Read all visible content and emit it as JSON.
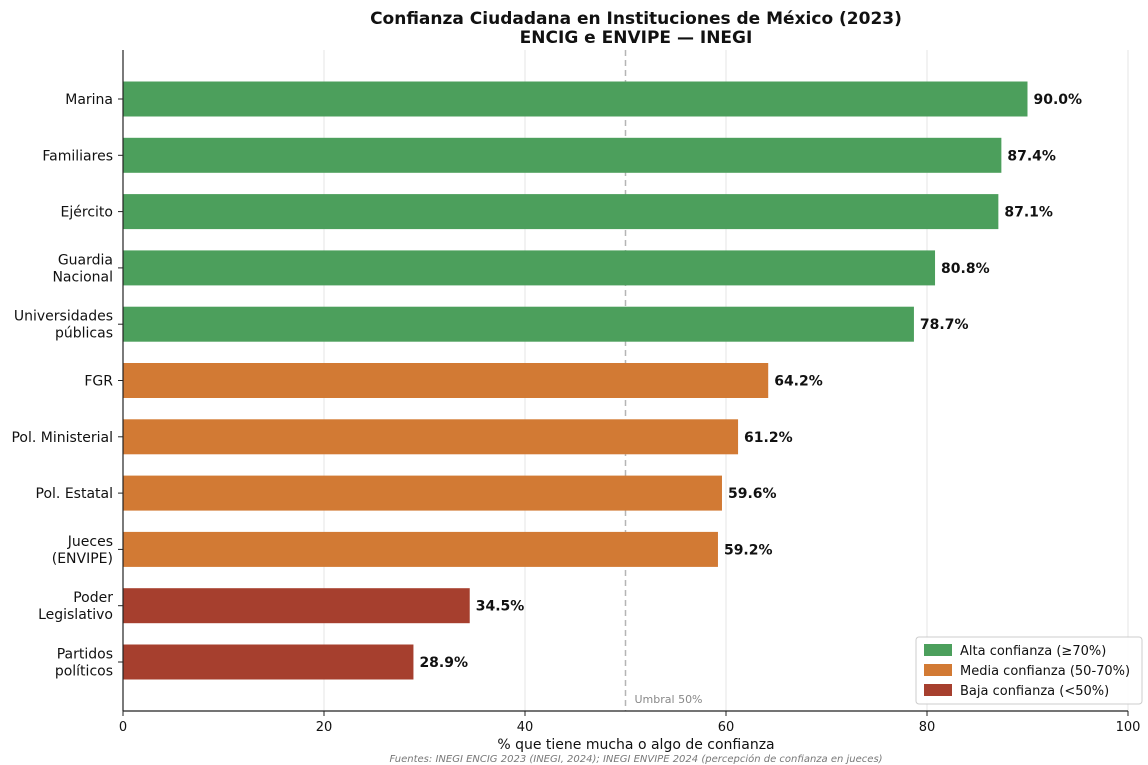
{
  "chart_data": {
    "type": "bar",
    "orientation": "horizontal",
    "title": "Confianza Ciudadana en Instituciones de México (2023)",
    "subtitle": "ENCIG e ENVIPE — INEGI",
    "xlabel": "% que tiene mucha o algo de confianza",
    "ylabel": "",
    "xlim": [
      0,
      100
    ],
    "xticks": [
      0,
      20,
      40,
      60,
      80,
      100
    ],
    "grid": "vertical",
    "categories": [
      [
        "Marina"
      ],
      [
        "Familiares"
      ],
      [
        "Ejército"
      ],
      [
        "Guardia",
        "Nacional"
      ],
      [
        "Universidades",
        "públicas"
      ],
      [
        "FGR"
      ],
      [
        "Pol. Ministerial"
      ],
      [
        "Pol. Estatal"
      ],
      [
        "Jueces",
        "(ENVIPE)"
      ],
      [
        "Poder",
        "Legislativo"
      ],
      [
        "Partidos",
        "políticos"
      ]
    ],
    "values": [
      90.0,
      87.4,
      87.1,
      80.8,
      78.7,
      64.2,
      61.2,
      59.6,
      59.2,
      34.5,
      28.9
    ],
    "value_labels": [
      "90.0%",
      "87.4%",
      "87.1%",
      "80.8%",
      "78.7%",
      "64.2%",
      "61.2%",
      "59.6%",
      "59.2%",
      "34.5%",
      "28.9%"
    ],
    "groups": [
      "alta",
      "alta",
      "alta",
      "alta",
      "alta",
      "media",
      "media",
      "media",
      "media",
      "baja",
      "baja"
    ],
    "threshold": {
      "value": 50,
      "label": "Umbral 50%"
    },
    "legend": {
      "placement": "lower-right",
      "entries": [
        {
          "key": "alta",
          "label": "Alta confianza (≥70%)",
          "color": "#4c9f5c"
        },
        {
          "key": "media",
          "label": "Media confianza (50-70%)",
          "color": "#d27a34"
        },
        {
          "key": "baja",
          "label": "Baja confianza (<50%)",
          "color": "#a63f2e"
        }
      ]
    },
    "source": "Fuentes: INEGI ENCIG 2023 (INEGI, 2024); INEGI ENVIPE 2024 (percepción de confianza en jueces)"
  }
}
